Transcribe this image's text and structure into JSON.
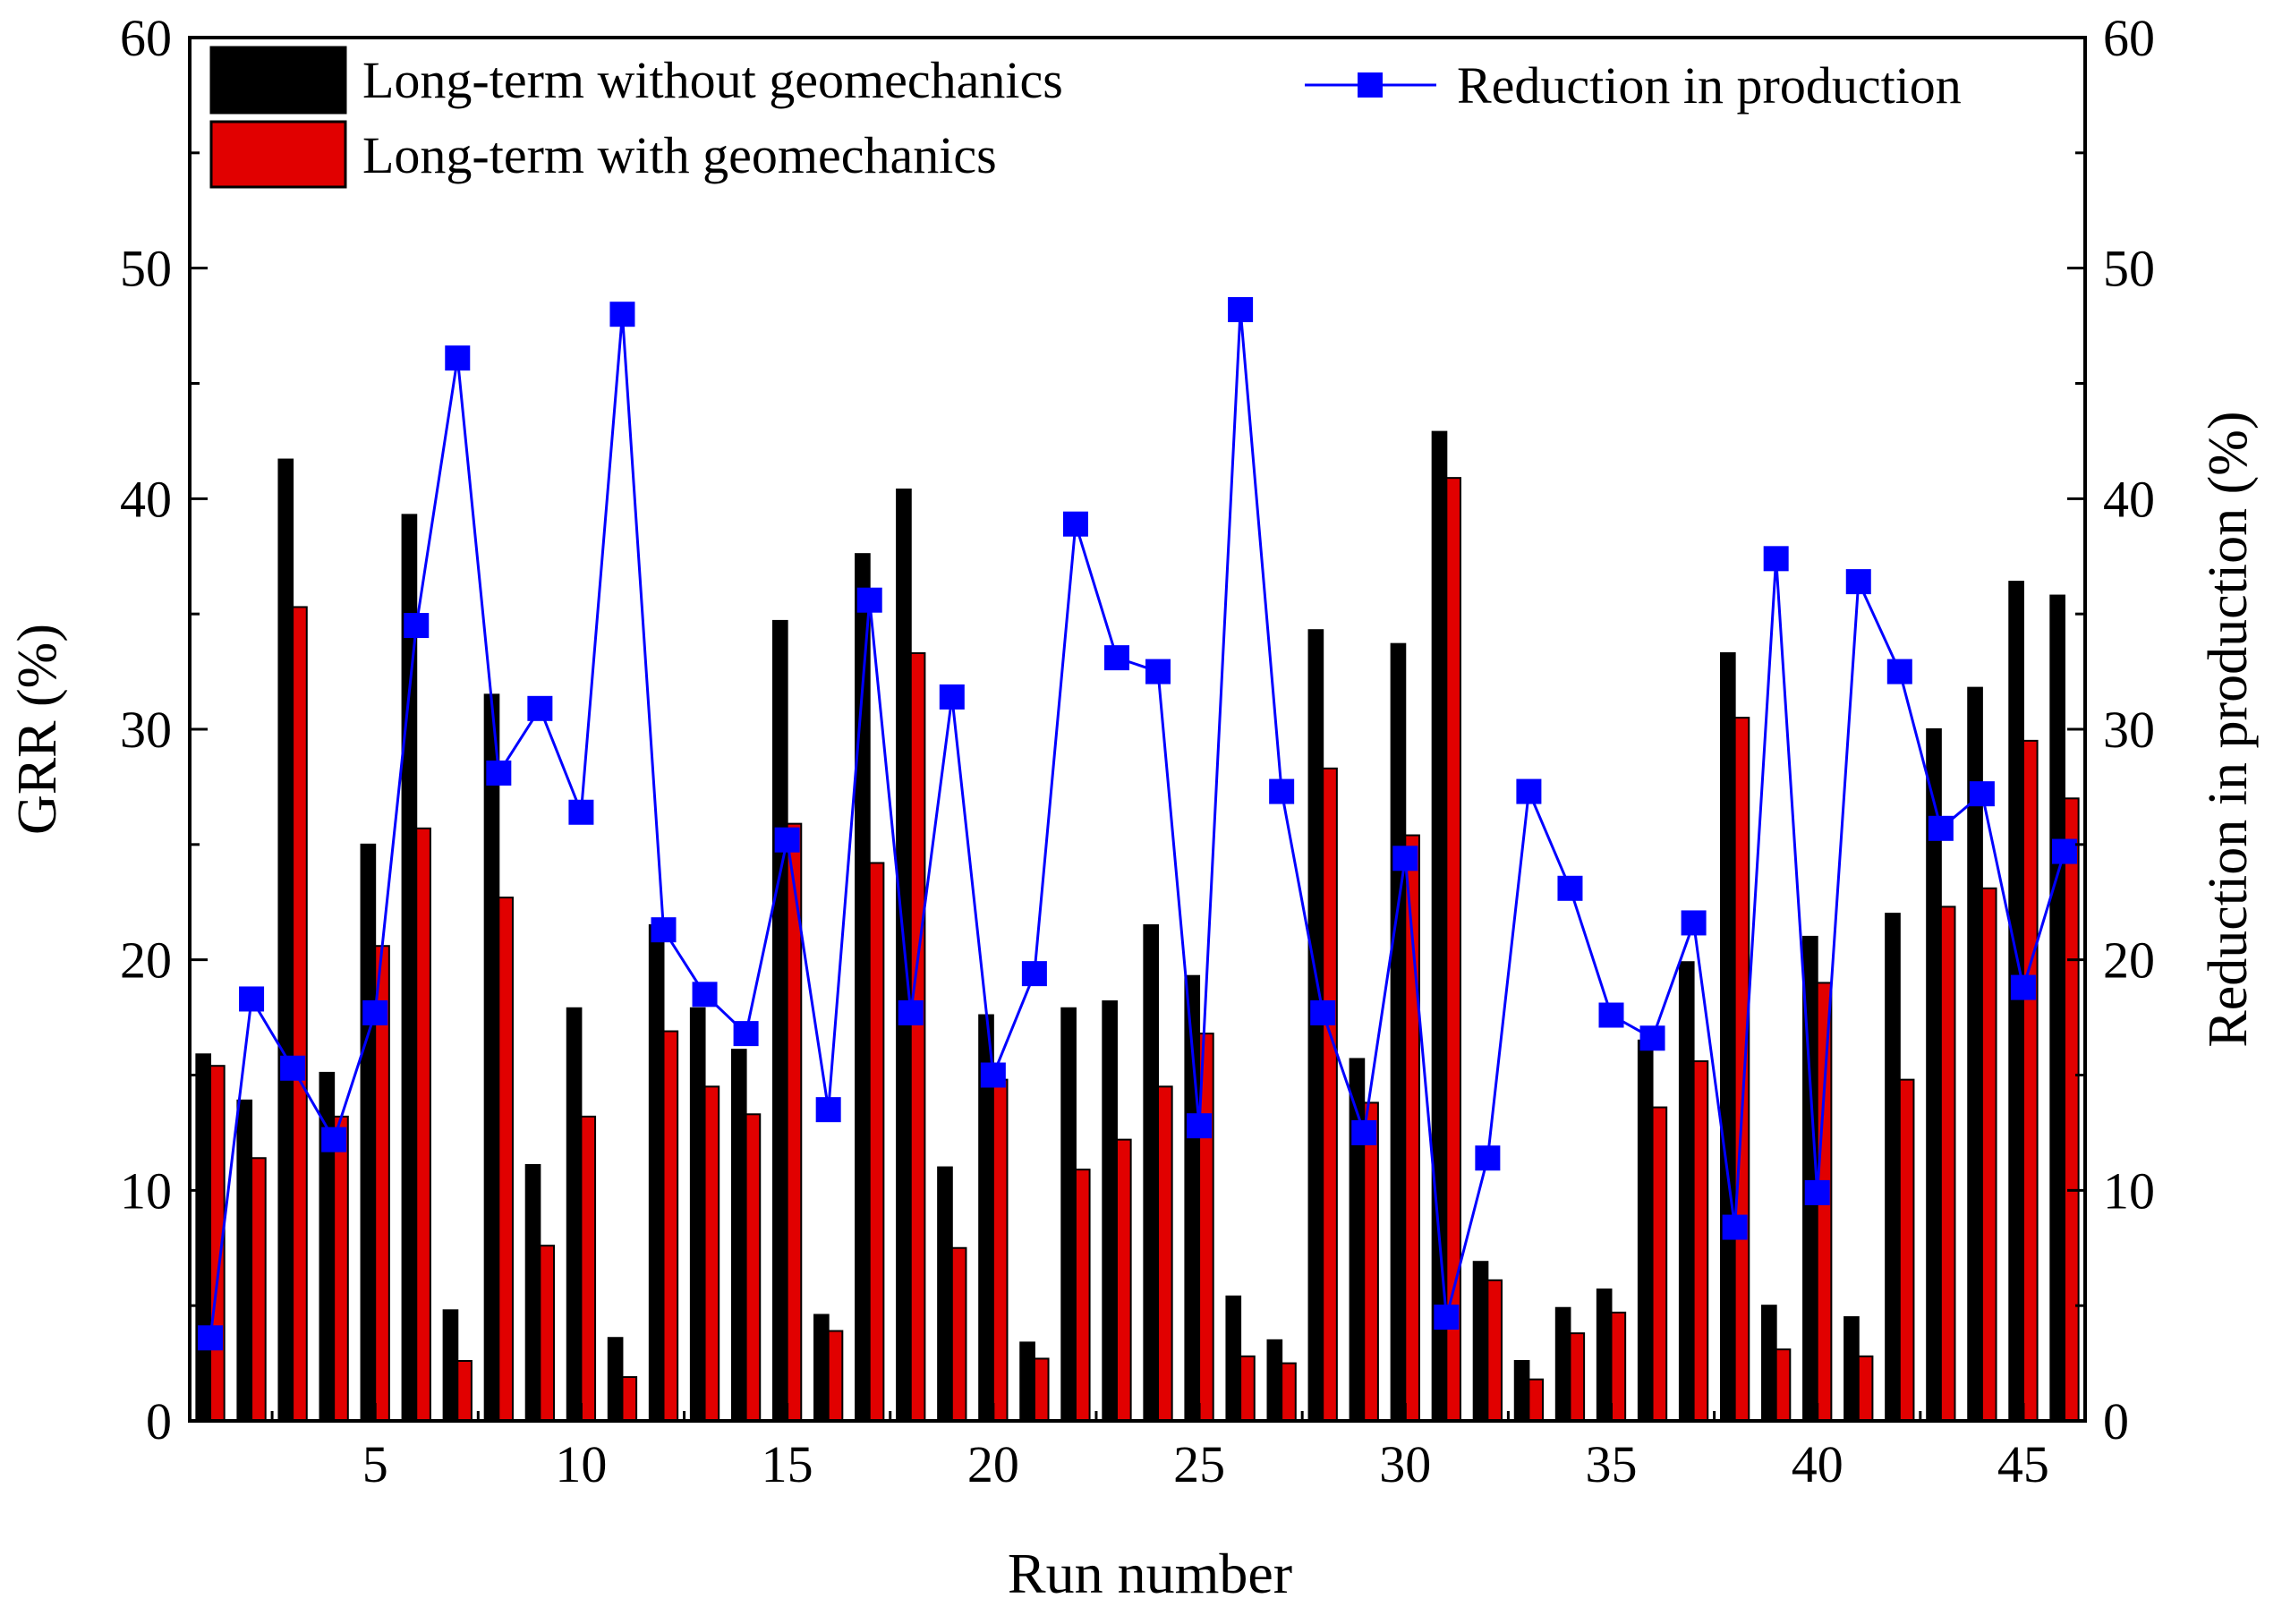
{
  "chart_data": {
    "type": "bar",
    "title": "",
    "xlabel": "Run number",
    "ylabel": "GRR (%)",
    "y2label": "Reduction in production (%)",
    "x": [
      1,
      2,
      3,
      4,
      5,
      6,
      7,
      8,
      9,
      10,
      11,
      12,
      13,
      14,
      15,
      16,
      17,
      18,
      19,
      20,
      21,
      22,
      23,
      24,
      25,
      26,
      27,
      28,
      29,
      30,
      31,
      32,
      33,
      34,
      35,
      36,
      37,
      38,
      39,
      40,
      41,
      42,
      43,
      44,
      45,
      46
    ],
    "xticks": [
      "5",
      "10",
      "15",
      "20",
      "25",
      "30",
      "35",
      "40",
      "45"
    ],
    "xtick_values": [
      5,
      10,
      15,
      20,
      25,
      30,
      35,
      40,
      45
    ],
    "xlim": [
      0.5,
      46.5
    ],
    "ylim": [
      0,
      60
    ],
    "y2lim": [
      0,
      60
    ],
    "yticks": [
      "0",
      "10",
      "20",
      "30",
      "40",
      "50",
      "60"
    ],
    "y2ticks": [
      "0",
      "10",
      "20",
      "30",
      "40",
      "50",
      "60"
    ],
    "series": [
      {
        "name": "Long-term without geomechanics",
        "kind": "bar",
        "axis": "left",
        "color": "#000000",
        "values": [
          15.9,
          13.9,
          41.7,
          15.1,
          25.0,
          39.3,
          4.8,
          31.5,
          11.1,
          17.9,
          3.6,
          21.5,
          17.9,
          16.1,
          34.7,
          4.6,
          37.6,
          40.4,
          11.0,
          17.6,
          3.4,
          17.9,
          18.2,
          21.5,
          19.3,
          5.4,
          3.5,
          34.3,
          15.7,
          33.7,
          42.9,
          6.9,
          2.6,
          4.9,
          5.7,
          16.5,
          19.9,
          33.3,
          5.0,
          21.0,
          4.5,
          22.0,
          30.0,
          31.8,
          36.4,
          35.8
        ]
      },
      {
        "name": "Long-term with geomechanics",
        "kind": "bar",
        "axis": "left",
        "color": "#e10000",
        "values": [
          15.4,
          11.4,
          35.3,
          13.2,
          20.6,
          25.7,
          2.6,
          22.7,
          7.6,
          13.2,
          1.9,
          16.9,
          14.5,
          13.3,
          25.9,
          3.9,
          24.2,
          33.3,
          7.5,
          14.8,
          2.7,
          10.9,
          12.2,
          14.5,
          16.8,
          2.8,
          2.5,
          28.3,
          13.8,
          25.4,
          40.9,
          6.1,
          1.8,
          3.8,
          4.7,
          13.6,
          15.6,
          30.5,
          3.1,
          19.0,
          2.8,
          14.8,
          22.3,
          23.1,
          29.5,
          27.0
        ]
      },
      {
        "name": "Reduction in production",
        "kind": "line",
        "axis": "right",
        "color": "#0000ff",
        "values": [
          3.6,
          18.3,
          15.3,
          12.2,
          17.7,
          34.5,
          46.1,
          28.1,
          30.9,
          26.4,
          48.0,
          21.3,
          18.5,
          16.8,
          25.2,
          13.5,
          35.6,
          17.7,
          31.4,
          15.0,
          19.4,
          38.9,
          33.1,
          32.5,
          12.8,
          48.2,
          27.3,
          17.7,
          12.5,
          24.4,
          4.5,
          11.4,
          27.3,
          23.1,
          17.6,
          16.6,
          21.6,
          8.4,
          37.4,
          9.9,
          36.4,
          32.5,
          25.7,
          27.2,
          18.8,
          24.7
        ]
      }
    ],
    "legend": [
      {
        "label": "Long-term without geomechanics",
        "position": "top-left"
      },
      {
        "label": "Long-term with geomechanics",
        "position": "top-left"
      },
      {
        "label": "Reduction in production",
        "position": "top-right"
      }
    ]
  }
}
